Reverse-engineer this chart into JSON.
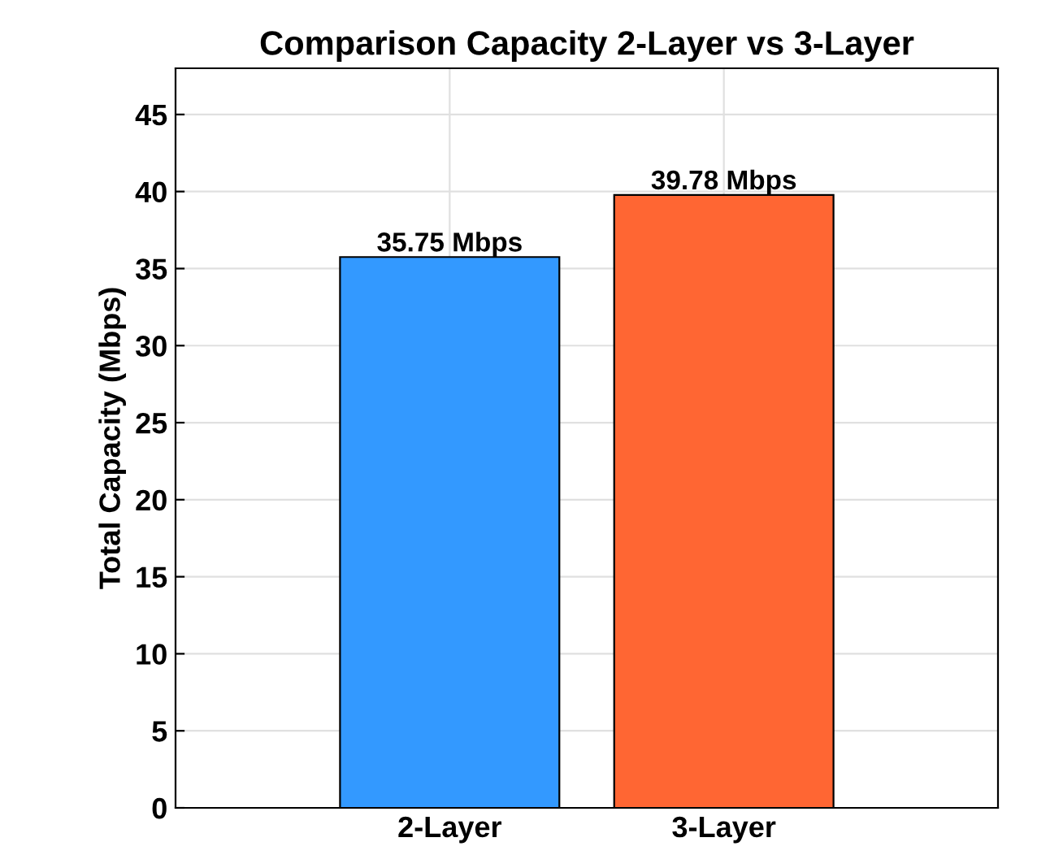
{
  "chart_data": {
    "type": "bar",
    "title": "Comparison Capacity 2-Layer vs 3-Layer",
    "ylabel": "Total Capacity (Mbps)",
    "categories": [
      "2-Layer",
      "3-Layer"
    ],
    "values": [
      35.75,
      39.78
    ],
    "colors": [
      "#3399ff",
      "#ff6633"
    ],
    "value_labels": [
      "35.75 Mbps",
      "39.78 Mbps"
    ],
    "ylim": [
      0,
      48
    ],
    "yticks": [
      0,
      5,
      10,
      15,
      20,
      25,
      30,
      35,
      40,
      45
    ],
    "grid": true
  }
}
